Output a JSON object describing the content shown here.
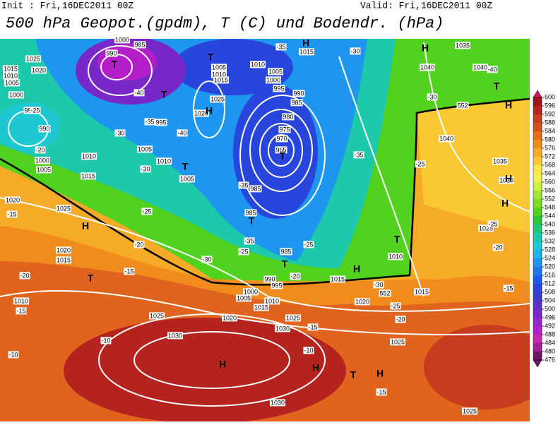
{
  "header": {
    "init": "Init : Fri,16DEC2011 00Z",
    "valid": "Valid: Fri,16DEC2011 00Z",
    "title": "500 hPa Geopot.(gpdm), T (C) und Bodendr. (hPa)"
  },
  "colorbar": {
    "levels": [
      600,
      596,
      592,
      588,
      584,
      580,
      576,
      572,
      568,
      564,
      560,
      556,
      552,
      548,
      544,
      540,
      536,
      532,
      528,
      524,
      520,
      516,
      512,
      508,
      504,
      500,
      496,
      492,
      488,
      484,
      480,
      476
    ],
    "colors": [
      "#d2145a",
      "#a0141e",
      "#b4231e",
      "#c83c1e",
      "#d2501e",
      "#e66e1e",
      "#f08c1e",
      "#f5aa28",
      "#fac832",
      "#fae646",
      "#f0f050",
      "#c8f03c",
      "#a0e632",
      "#78dc28",
      "#50d21e",
      "#28c83c",
      "#1ec878",
      "#1ec8aa",
      "#1ec8d2",
      "#1eb4e6",
      "#1e96f0",
      "#1e78f0",
      "#1e5af0",
      "#2846dc",
      "#3c3cc8",
      "#5a32c8",
      "#7828c8",
      "#9628c8",
      "#b41ec8",
      "#c828b4",
      "#a01e96",
      "#6e1464"
    ]
  },
  "map": {
    "isobars": [
      990,
      985,
      1000,
      1015,
      1025,
      1020,
      1010,
      1005,
      1000,
      995,
      990,
      1005,
      1010,
      1015,
      1020,
      1025,
      995,
      1010,
      1005,
      1000,
      995,
      990,
      985,
      980,
      975,
      970,
      965,
      985,
      985,
      985,
      990,
      995,
      1000,
      1005,
      1010,
      1015,
      1020,
      1025,
      1030,
      1015,
      1020,
      1010,
      1015,
      1025,
      1030,
      1025,
      1030,
      1025,
      1010,
      1020,
      1015,
      1025,
      1020,
      1015,
      1010,
      1005,
      1000,
      1005,
      1010,
      1005,
      1015,
      1035,
      1040,
      1040,
      1040,
      1035,
      1030,
      1025
    ],
    "temperatures": [
      -35,
      -30,
      -40,
      -40,
      -30,
      -25,
      -30,
      -35,
      -40,
      -20,
      -30,
      -25,
      -20,
      -15,
      -25,
      -35,
      -35,
      -35,
      -25,
      -30,
      -25,
      -20,
      -15,
      -20,
      -15,
      -10,
      -10,
      -15,
      -10,
      -15,
      -20,
      -25,
      -30,
      -25,
      -15,
      -20
    ],
    "contour_labels": [
      552,
      552
    ],
    "pressure_systems": [
      "T",
      "T",
      "T",
      "H",
      "T",
      "H",
      "H",
      "T",
      "H",
      "H",
      "H",
      "T",
      "H",
      "T",
      "T",
      "T",
      "T",
      "H",
      "H",
      "H",
      "T",
      "H"
    ]
  }
}
